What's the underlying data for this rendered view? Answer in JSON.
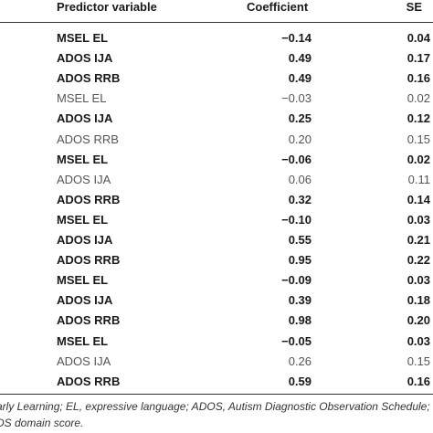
{
  "table": {
    "header": [
      "Predictor variable",
      "Coefficient",
      "SE"
    ],
    "rows": [
      {
        "cells": [
          "MSEL EL",
          "−0.14",
          "0.04"
        ],
        "bold": true
      },
      {
        "cells": [
          "ADOS IJA",
          "0.49",
          "0.17"
        ],
        "bold": true
      },
      {
        "cells": [
          "ADOS RRB",
          "0.49",
          "0.16"
        ],
        "bold": true
      },
      {
        "cells": [
          "MSEL EL",
          "−0.03",
          "0.02"
        ],
        "bold": false
      },
      {
        "cells": [
          "ADOS IJA",
          "0.25",
          "0.12"
        ],
        "bold": true
      },
      {
        "cells": [
          "ADOS RRB",
          "0.20",
          "0.15"
        ],
        "bold": false
      },
      {
        "cells": [
          "MSEL EL",
          "−0.06",
          "0.02"
        ],
        "bold": true
      },
      {
        "cells": [
          "ADOS IJA",
          "0.06",
          "0.11"
        ],
        "bold": false
      },
      {
        "cells": [
          "ADOS RRB",
          "0.32",
          "0.14"
        ],
        "bold": true
      },
      {
        "cells": [
          "MSEL EL",
          "−0.10",
          "0.03"
        ],
        "bold": true
      },
      {
        "cells": [
          "ADOS IJA",
          "0.55",
          "0.21"
        ],
        "bold": true
      },
      {
        "cells": [
          "ADOS RRB",
          "0.95",
          "0.22"
        ],
        "bold": true
      },
      {
        "cells": [
          "MSEL EL",
          "−0.09",
          "0.03"
        ],
        "bold": true
      },
      {
        "cells": [
          "ADOS IJA",
          "0.39",
          "0.18"
        ],
        "bold": true
      },
      {
        "cells": [
          "ADOS RRB",
          "0.98",
          "0.20"
        ],
        "bold": true
      },
      {
        "cells": [
          "MSEL EL",
          "−0.05",
          "0.03"
        ],
        "bold": true
      },
      {
        "cells": [
          "ADOS IJA",
          "0.26",
          "0.15"
        ],
        "bold": false
      },
      {
        "cells": [
          "ADOS RRB",
          "0.59",
          "0.16"
        ],
        "bold": true
      }
    ]
  },
  "footnote": [
    "arly Learning; EL, expressive language; ADOS, Autism Diagnostic Observation Schedule; IJA",
    "DS domain score."
  ]
}
